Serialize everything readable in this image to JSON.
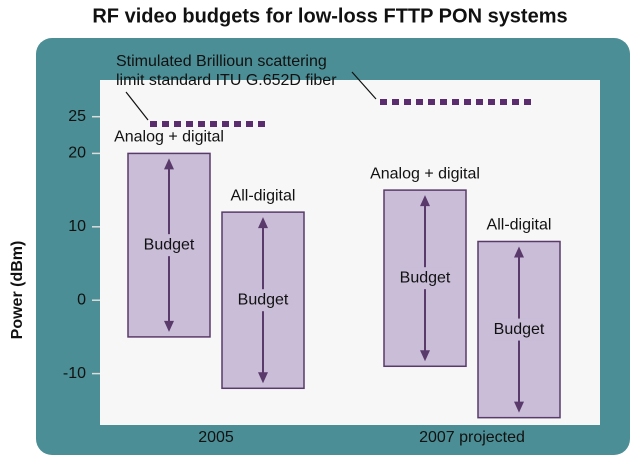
{
  "chart_data": {
    "type": "range_bar",
    "title": "RF video budgets for low-loss FTTP PON systems",
    "y_label": "Power (dBm)",
    "categories": [
      "2005",
      "2007 projected"
    ],
    "series": [
      {
        "name": "Analog + digital",
        "color": "#c9bdd8",
        "low": [
          -5,
          -9
        ],
        "high": [
          20,
          15
        ]
      },
      {
        "name": "All-digital",
        "color": "#c9bdd8",
        "low": [
          -12,
          -16
        ],
        "high": [
          12,
          8
        ]
      }
    ],
    "bar_text": "Budget",
    "limit": {
      "label_lines": [
        "Stimulated Brillioun scattering",
        "limit standard ITU G.652D fiber"
      ],
      "values": [
        24,
        27
      ],
      "color": "#5b2d6e"
    },
    "ylim": [
      -17,
      30
    ],
    "yticks": [
      -10,
      0,
      10,
      20,
      25
    ]
  }
}
